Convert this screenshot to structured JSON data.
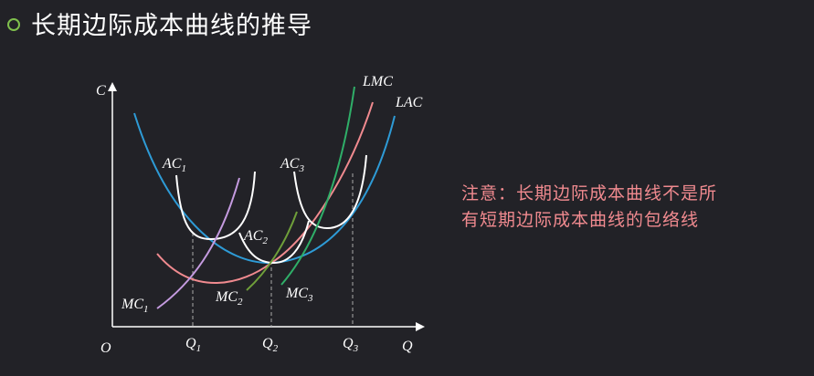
{
  "title": "长期边际成本曲线的推导",
  "note": {
    "line1": "注意：长期边际成本曲线不是所",
    "line2": "有短期边际成本曲线的包络线"
  },
  "axes": {
    "y_label": "C",
    "x_label": "Q",
    "origin": "O",
    "ticks": [
      {
        "base": "Q",
        "sub": "1"
      },
      {
        "base": "Q",
        "sub": "2"
      },
      {
        "base": "Q",
        "sub": "3"
      }
    ]
  },
  "curves": {
    "LMC": "LMC",
    "LAC": "LAC",
    "AC1": {
      "base": "AC",
      "sub": "1"
    },
    "AC2": {
      "base": "AC",
      "sub": "2"
    },
    "AC3": {
      "base": "AC",
      "sub": "3"
    },
    "MC1": {
      "base": "MC",
      "sub": "1"
    },
    "MC2": {
      "base": "MC",
      "sub": "2"
    },
    "MC3": {
      "base": "MC",
      "sub": "3"
    }
  },
  "colors": {
    "lac": "#2e9bd6",
    "lmc": "#f08a8f",
    "ac": "#ffffff",
    "mc1": "#c59be0",
    "mc2": "#6f9f3a",
    "mc3": "#2fae68",
    "note": "#f08a8f",
    "bullet": "#7fbf4d"
  }
}
